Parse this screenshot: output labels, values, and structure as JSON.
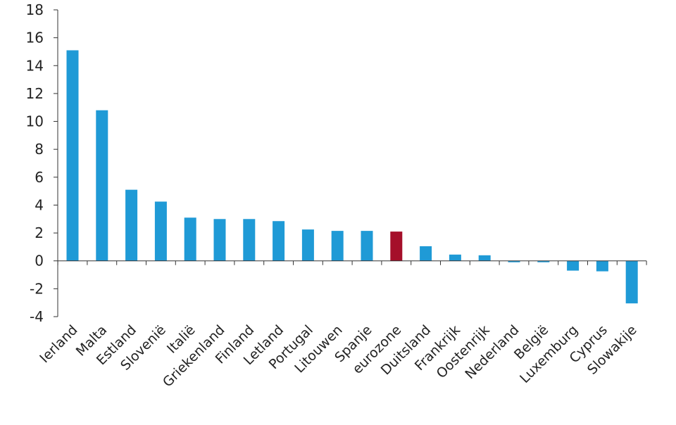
{
  "chart_data": {
    "type": "bar",
    "title": "",
    "xlabel": "",
    "ylabel": "",
    "ylim": [
      -4,
      18
    ],
    "yticks": [
      -4,
      -2,
      0,
      2,
      4,
      6,
      8,
      10,
      12,
      14,
      16,
      18
    ],
    "ytick_labels": [
      "-4",
      "-2",
      "0",
      "2",
      "4",
      "6",
      "8",
      "10",
      "12",
      "14",
      "16",
      "18"
    ],
    "grid": false,
    "legend": "none",
    "colors": {
      "default": "#1f9ad6",
      "highlight": "#a50f2a"
    },
    "highlight_category": "eurozone",
    "categories": [
      "Ierland",
      "Malta",
      "Estland",
      "Slovenië",
      "Italië",
      "Griekenland",
      "Finland",
      "Letland",
      "Portugal",
      "Litouwen",
      "Spanje",
      "eurozone",
      "Duitsland",
      "Frankrijk",
      "Oostenrijk",
      "Nederland",
      "België",
      "Luxemburg",
      "Cyprus",
      "Slowakije"
    ],
    "values": [
      15.1,
      10.8,
      5.1,
      4.25,
      3.1,
      3.0,
      3.0,
      2.85,
      2.25,
      2.15,
      2.15,
      2.1,
      1.05,
      0.45,
      0.4,
      -0.1,
      -0.1,
      -0.7,
      -0.75,
      -3.05
    ]
  }
}
